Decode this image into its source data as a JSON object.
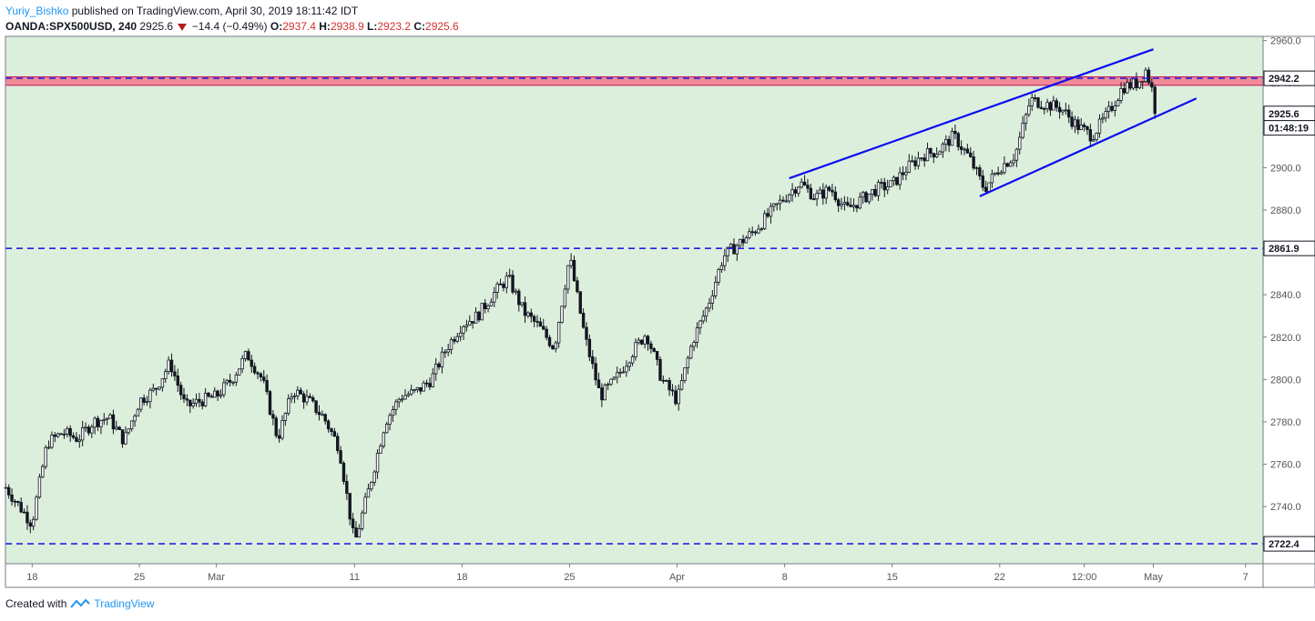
{
  "header": {
    "author": "Yuriy_Bishko",
    "published_text": "published on TradingView.com, April 30, 2019 18:11:42 IDT",
    "symbol": "OANDA:SPX500USD, 240",
    "last": "2925.6",
    "change": "−14.4 (−0.49%)",
    "o_label": "O:",
    "o_value": "2937.4",
    "h_label": "H:",
    "h_value": "2938.9",
    "l_label": "L:",
    "l_value": "2923.2",
    "c_label": "C:",
    "c_value": "2925.6"
  },
  "footer": {
    "created_with": "Created with",
    "brand": "TradingView"
  },
  "colors": {
    "background": "#dcefdc",
    "candle": "#131722",
    "trendline": "#0c0cf0",
    "hline": "#1f1fe6",
    "resistance_zone": "#f08a96",
    "price_tag": "#131722"
  },
  "chart_data": {
    "type": "candlestick",
    "symbol": "OANDA:SPX500USD",
    "interval": "240",
    "ylim": [
      2713,
      2962
    ],
    "y_ticks": [
      2740,
      2760,
      2780,
      2800,
      2820,
      2840,
      2860,
      2880,
      2900,
      2920,
      2940,
      2960
    ],
    "x_ticks": [
      {
        "label": "18",
        "x": 0.02
      },
      {
        "label": "25",
        "x": 7
      },
      {
        "label": "Mar",
        "x": 12
      },
      {
        "label": "11",
        "x": 21
      },
      {
        "label": "18",
        "x": 28
      },
      {
        "label": "25",
        "x": 35
      },
      {
        "label": "Apr",
        "x": 42
      },
      {
        "label": "8",
        "x": 49
      },
      {
        "label": "15",
        "x": 56
      },
      {
        "label": "22",
        "x": 63
      },
      {
        "label": "12:00",
        "x": 68.5
      },
      {
        "label": "May",
        "x": 73
      },
      {
        "label": "7",
        "x": 79
      }
    ],
    "price_tags": [
      {
        "label": "2942.2",
        "value": 2942.2
      },
      {
        "label": "2925.6",
        "value": 2925.6
      },
      {
        "label": "01:48:19",
        "value": 2918.8
      },
      {
        "label": "2861.9",
        "value": 2861.9
      },
      {
        "label": "2722.4",
        "value": 2722.4
      }
    ],
    "horizontal_lines": [
      2942.2,
      2861.9,
      2722.4
    ],
    "resistance_zone": [
      2938.9,
      2942.9
    ],
    "trendlines": [
      {
        "name": "channel-upper",
        "start": [
          49.3,
          2895.0
        ],
        "end": [
          73.0,
          2955.9
        ]
      },
      {
        "name": "channel-lower",
        "start": [
          61.7,
          2886.5
        ],
        "end": [
          75.8,
          2932.7
        ]
      }
    ],
    "anchors": [
      [
        -2,
        2752
      ],
      [
        0,
        2732
      ],
      [
        1,
        2770
      ],
      [
        2,
        2775
      ],
      [
        3,
        2772
      ],
      [
        4,
        2780
      ],
      [
        5,
        2782
      ],
      [
        6,
        2771
      ],
      [
        7,
        2790
      ],
      [
        8,
        2795
      ],
      [
        9,
        2808
      ],
      [
        10,
        2787
      ],
      [
        11,
        2790
      ],
      [
        12,
        2792
      ],
      [
        13,
        2800
      ],
      [
        14,
        2812
      ],
      [
        15,
        2800
      ],
      [
        16,
        2772
      ],
      [
        17,
        2795
      ],
      [
        18,
        2790
      ],
      [
        19,
        2782
      ],
      [
        20,
        2768
      ],
      [
        21,
        2722.4
      ],
      [
        22,
        2750
      ],
      [
        23,
        2780
      ],
      [
        24,
        2792
      ],
      [
        25,
        2794
      ],
      [
        26,
        2800
      ],
      [
        27,
        2815
      ],
      [
        28,
        2826
      ],
      [
        29,
        2830
      ],
      [
        30,
        2840
      ],
      [
        31,
        2848
      ],
      [
        32,
        2832
      ],
      [
        33,
        2825
      ],
      [
        34,
        2815
      ],
      [
        35,
        2858
      ],
      [
        36,
        2820
      ],
      [
        37,
        2792
      ],
      [
        38,
        2800
      ],
      [
        39,
        2812
      ],
      [
        40,
        2822
      ],
      [
        41,
        2800
      ],
      [
        42,
        2790
      ],
      [
        43,
        2818
      ],
      [
        44,
        2835
      ],
      [
        45,
        2858
      ],
      [
        46,
        2864
      ],
      [
        47,
        2870
      ],
      [
        48,
        2878
      ],
      [
        49,
        2886
      ],
      [
        50,
        2893
      ],
      [
        51,
        2886
      ],
      [
        52,
        2890
      ],
      [
        53,
        2880
      ],
      [
        54,
        2885
      ],
      [
        55,
        2890
      ],
      [
        56,
        2892
      ],
      [
        57,
        2900
      ],
      [
        58,
        2906
      ],
      [
        59,
        2908
      ],
      [
        60,
        2915
      ],
      [
        61,
        2905
      ],
      [
        62,
        2890
      ],
      [
        63,
        2900
      ],
      [
        64,
        2906
      ],
      [
        65,
        2932
      ],
      [
        66,
        2930
      ],
      [
        67,
        2928
      ],
      [
        68,
        2920
      ],
      [
        69,
        2915
      ],
      [
        70,
        2925
      ],
      [
        71,
        2938
      ],
      [
        72,
        2940
      ],
      [
        72.5,
        2946
      ],
      [
        73,
        2935
      ],
      [
        73.2,
        2925.6
      ]
    ]
  }
}
